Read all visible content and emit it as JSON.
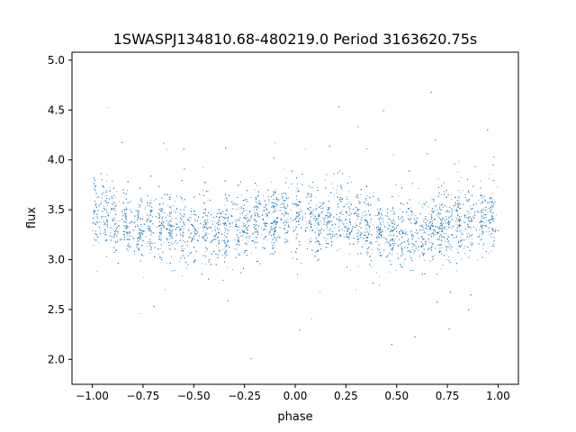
{
  "chart_data": {
    "type": "scatter",
    "title": "1SWASPJ134810.68-480219.0 Period 3163620.75s",
    "xlabel": "phase",
    "ylabel": "flux",
    "xlim": [
      -1.1,
      1.1
    ],
    "ylim": [
      1.75,
      5.08
    ],
    "x_ticks": [
      -1.0,
      -0.75,
      -0.5,
      -0.25,
      0.0,
      0.25,
      0.5,
      0.75,
      1.0
    ],
    "x_tick_labels": [
      "−1.00",
      "−0.75",
      "−0.50",
      "−0.25",
      "0.00",
      "0.25",
      "0.50",
      "0.75",
      "1.00"
    ],
    "y_ticks": [
      2.0,
      2.5,
      3.0,
      3.5,
      4.0,
      4.5,
      5.0
    ],
    "y_tick_labels": [
      "2.0",
      "2.5",
      "3.0",
      "3.5",
      "4.0",
      "4.5",
      "5.0"
    ],
    "grid": false,
    "marker_color": "#1f77b4",
    "series": [
      {
        "x": [
          -1.0,
          -0.96,
          -0.9,
          -0.85,
          -0.8,
          -0.75,
          -0.7,
          -0.65,
          -0.6,
          -0.55,
          -0.5,
          -0.45,
          -0.4,
          -0.35,
          -0.3,
          -0.25,
          -0.2,
          -0.15,
          -0.1,
          -0.05,
          0.0,
          0.05,
          0.1,
          0.15,
          0.2,
          0.25,
          0.3,
          0.35,
          0.4,
          0.45,
          0.5,
          0.55,
          0.6,
          0.65,
          0.7,
          0.75,
          0.8,
          0.85,
          0.9,
          0.95,
          1.0
        ],
        "y": [
          3.45,
          3.5,
          3.42,
          3.38,
          3.35,
          3.35,
          3.4,
          3.3,
          3.28,
          3.3,
          3.3,
          3.32,
          3.28,
          3.3,
          3.32,
          3.3,
          3.35,
          3.4,
          3.4,
          3.45,
          3.45,
          3.42,
          3.4,
          3.42,
          3.45,
          3.4,
          3.35,
          3.35,
          3.32,
          3.3,
          3.3,
          3.3,
          3.28,
          3.3,
          3.32,
          3.35,
          3.38,
          3.38,
          3.4,
          3.45,
          3.45
        ]
      }
    ]
  }
}
